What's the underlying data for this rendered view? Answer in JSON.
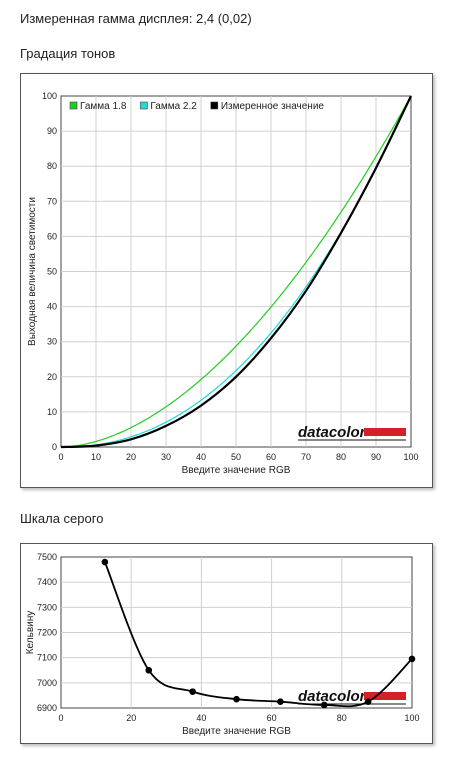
{
  "header": {
    "gamma_text": "Измеренная гамма дисплея: 2,4 (0,02)"
  },
  "sections": {
    "tone": "Градация тонов",
    "gray": "Шкала серого"
  },
  "logo": {
    "text": "datacolor",
    "bar_color": "#d42027"
  },
  "chart_data": [
    {
      "type": "line",
      "title": "Градация тонов",
      "xlabel": "Введите значение RGB",
      "ylabel": "Выходная величина светимости",
      "xlim": [
        0,
        100
      ],
      "ylim": [
        0,
        100
      ],
      "xticks": [
        "0",
        "10",
        "20",
        "30",
        "40",
        "50",
        "60",
        "70",
        "80",
        "90",
        "100"
      ],
      "yticks": [
        "0",
        "10",
        "20",
        "30",
        "40",
        "50",
        "60",
        "70",
        "80",
        "90",
        "100"
      ],
      "grid": true,
      "legend": "top-left",
      "series": [
        {
          "name": "Гамма 1.8",
          "color": "#22cc22",
          "gamma": 1.8,
          "x": [
            0,
            10,
            20,
            30,
            40,
            50,
            60,
            70,
            80,
            90,
            100
          ],
          "y": [
            0,
            1.6,
            5.5,
            11.5,
            19.2,
            28.7,
            39.9,
            52.6,
            66.9,
            82.7,
            100
          ]
        },
        {
          "name": "Гамма 2.2",
          "color": "#22d8d8",
          "gamma": 2.2,
          "x": [
            0,
            10,
            20,
            30,
            40,
            50,
            60,
            70,
            80,
            90,
            100
          ],
          "y": [
            0,
            0.6,
            2.9,
            7.1,
            13.3,
            21.8,
            32.5,
            45.6,
            61.2,
            79.3,
            100
          ]
        },
        {
          "name": "Измеренное значение",
          "color": "#000000",
          "x": [
            0,
            10,
            20,
            30,
            40,
            50,
            60,
            70,
            80,
            90,
            100
          ],
          "y": [
            0,
            0.4,
            2.2,
            6.0,
            11.8,
            20.0,
            31.0,
            44.5,
            61.0,
            79.5,
            100
          ]
        }
      ]
    },
    {
      "type": "line",
      "title": "Шкала серого",
      "xlabel": "Введите значение RGB",
      "ylabel": "Кельвину",
      "xlim": [
        0,
        100
      ],
      "ylim": [
        6900,
        7500
      ],
      "xticks": [
        "0",
        "20",
        "40",
        "60",
        "80",
        "100"
      ],
      "yticks": [
        "6900",
        "7000",
        "7100",
        "7200",
        "7300",
        "7400",
        "7500"
      ],
      "grid": true,
      "series": [
        {
          "name": "",
          "color": "#000000",
          "x": [
            12.5,
            25,
            37.5,
            50,
            62.5,
            75,
            87.5,
            100
          ],
          "y": [
            7480,
            7050,
            6965,
            6935,
            6925,
            6912,
            6925,
            7095
          ]
        }
      ]
    }
  ]
}
